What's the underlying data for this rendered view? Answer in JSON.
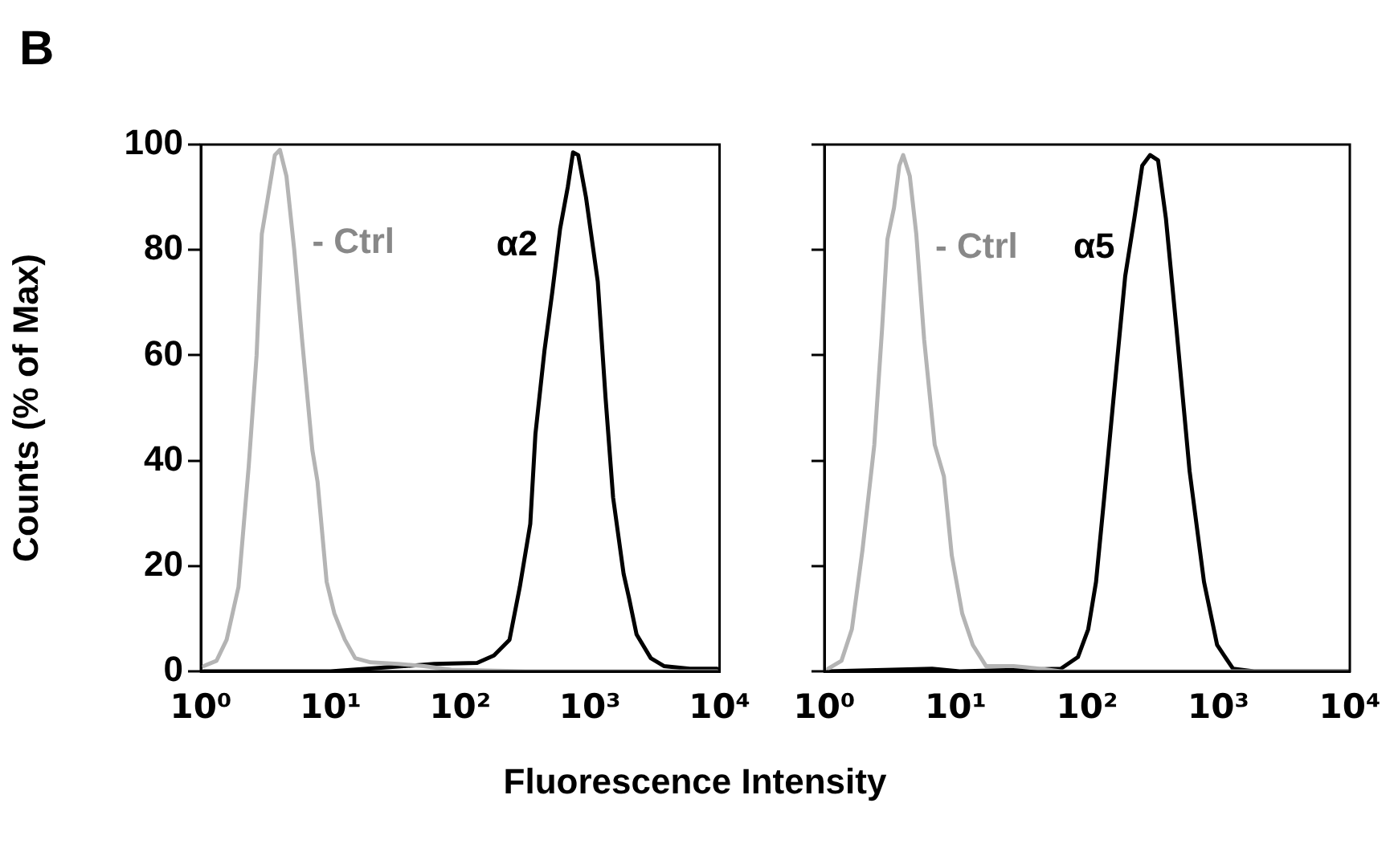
{
  "chart_data": [
    {
      "type": "line",
      "title": "B",
      "xlabel": "Fluorescence Intensity",
      "ylabel": "Counts (% of Max)",
      "log": "x",
      "grid": false,
      "legend": false,
      "marker": "none",
      "xlim": [
        1,
        10000
      ],
      "xticks": [
        {
          "value": 1,
          "label": "10⁰"
        },
        {
          "value": 10,
          "label": "10¹"
        },
        {
          "value": 100,
          "label": "10²"
        },
        {
          "value": 1000,
          "label": "10³"
        },
        {
          "value": 10000,
          "label": "10⁴"
        }
      ],
      "ylim": [
        0,
        100
      ],
      "yticks": [
        0,
        20,
        40,
        60,
        80,
        100
      ],
      "series": [
        {
          "name": "- Ctrl",
          "color": "#b4b4b4",
          "x": [
            1.05,
            1.32,
            1.58,
            1.95,
            2.34,
            2.69,
            2.95,
            3.24,
            3.72,
            4.07,
            4.57,
            5.25,
            6.03,
            7.24,
            7.94,
            9.33,
            10.7,
            12.9,
            15.5,
            20.4,
            33.1,
            52.5,
            85.1,
            316,
            1000,
            9550
          ],
          "values": [
            1,
            2,
            6,
            16,
            39,
            60,
            83,
            89,
            98,
            99,
            94,
            80,
            63,
            42,
            36,
            17,
            11,
            6,
            2.5,
            1.7,
            1.4,
            1,
            0.3,
            0,
            0,
            0
          ]
        },
        {
          "name": "α2",
          "color": "#000000",
          "x": [
            1.05,
            10,
            33.1,
            63.1,
            135,
            182,
            240,
            288,
            347,
            380,
            447,
            513,
            589,
            676,
            741,
            813,
            933,
            1150,
            1320,
            1510,
            1820,
            2000,
            2290,
            2950,
            3720,
            5890,
            9550
          ],
          "values": [
            0,
            0,
            0.9,
            1.4,
            1.6,
            3,
            6,
            16,
            28,
            45,
            61,
            72,
            84,
            92,
            98.5,
            98,
            90,
            74,
            52,
            33,
            18.5,
            14,
            7,
            2.5,
            1,
            0.5,
            0.5
          ]
        }
      ]
    },
    {
      "type": "line",
      "log": "x",
      "grid": false,
      "legend": false,
      "marker": "none",
      "tick_labels": "x",
      "xlim": [
        1,
        10000
      ],
      "xticks": [
        {
          "value": 1,
          "label": "10⁰"
        },
        {
          "value": 10,
          "label": "10¹"
        },
        {
          "value": 100,
          "label": "10²"
        },
        {
          "value": 1000,
          "label": "10³"
        },
        {
          "value": 10000,
          "label": "10⁴"
        }
      ],
      "ylim": [
        0,
        100
      ],
      "yticks": [
        0,
        20,
        40,
        60,
        80,
        100
      ],
      "series": [
        {
          "name": "- Ctrl",
          "color": "#b4b4b4",
          "x": [
            1.07,
            1.35,
            1.62,
            1.95,
            2.4,
            2.75,
            3.02,
            3.39,
            3.72,
            3.98,
            4.47,
            5.01,
            5.75,
            6.92,
            8.13,
            9.33,
            11.2,
            13.5,
            17,
            27.5,
            43.7,
            63.1,
            9770
          ],
          "values": [
            0.5,
            2,
            8,
            23,
            43,
            65,
            82,
            88,
            96,
            98,
            94,
            83,
            63,
            43,
            37,
            22,
            11,
            5,
            1,
            1,
            0.5,
            0,
            0
          ]
        },
        {
          "name": "α5",
          "color": "#000000",
          "x": [
            1.07,
            6.61,
            10.7,
            63.1,
            85.1,
            102,
            117,
            135,
            162,
            195,
            229,
            263,
            302,
            347,
            398,
            479,
            603,
            776,
            977,
            1290,
            1860,
            9770
          ],
          "values": [
            0,
            0.5,
            0,
            0.5,
            2.7,
            8,
            17,
            33,
            54,
            75,
            86,
            96,
            98,
            97,
            86,
            65,
            38,
            17,
            5,
            0.5,
            0,
            0
          ]
        }
      ]
    }
  ]
}
